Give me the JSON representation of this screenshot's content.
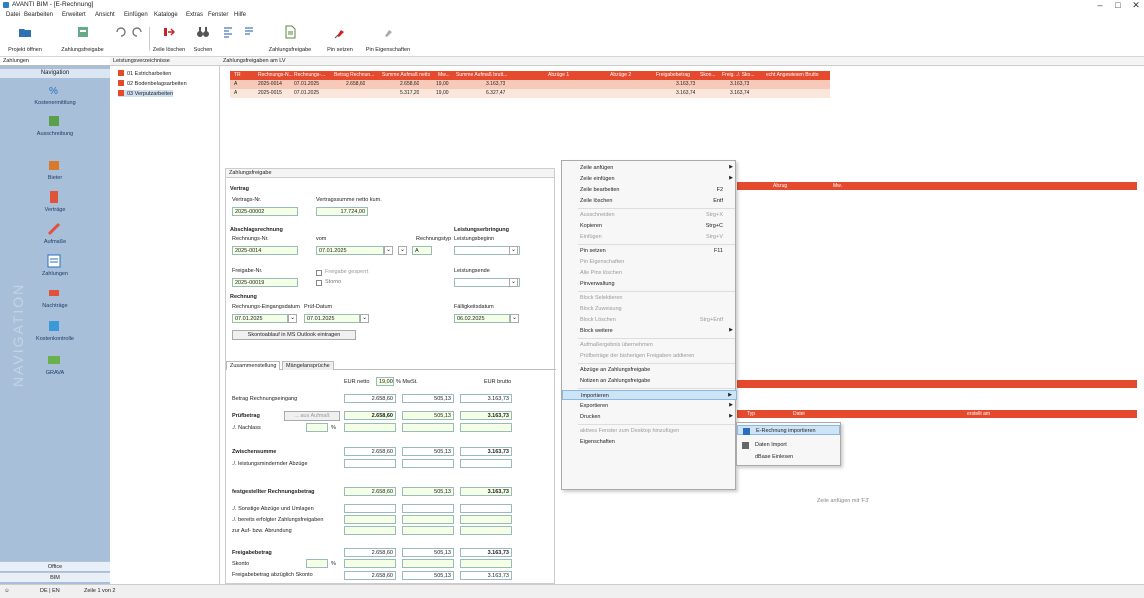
{
  "window": {
    "title": "AVANTI BIM - [E-Rechnung]",
    "minimize": "–",
    "maximize": "□",
    "close": "✕"
  },
  "menu": [
    "Datei",
    "Bearbeiten",
    "Erweitert",
    "Ansicht",
    "Einfügen",
    "Kataloge",
    "Extras",
    "Fenster",
    "Hilfe"
  ],
  "toolbar": {
    "project_open": "Projekt öffnen",
    "payment_release": "Zahlungsfreigabe",
    "delete_row": "Zeile löschen",
    "search": "Suchen",
    "payment_release2": "Zahlungsfreigabe",
    "set_pin": "Pin setzen",
    "pin_properties": "Pin Eigenschaften"
  },
  "nav": {
    "panel": "Zahlungen",
    "title": "Navigation",
    "items": [
      "Kostenermittlung",
      "Ausschreibung",
      "Bieter",
      "Verträge",
      "Aufmaße",
      "Zahlungen",
      "Nachträge",
      "Kostenkontrolle",
      "GRAVA"
    ],
    "vertical": "NAVIGATION",
    "office": "Office",
    "bim": "BIM"
  },
  "tree": {
    "panel": "Leistungsverzeichnisse",
    "items": [
      "01 Estricharbeiten",
      "02 Bodenbelagsarbeiten",
      "03 Verputzarbeiten"
    ]
  },
  "grid": {
    "panel": "Zahlungsfreigaben am LV",
    "headers": [
      "TR",
      "Rechnungs-N...",
      "Rechnungs-...",
      "Betrag Rechnun...",
      "Summe Aufmaß netto",
      "Mw...",
      "Summe Aufmaß brutt...",
      "Abzüge 1",
      "Abzüge 2",
      "Freigabebetrag",
      "Skon...",
      "Freig. ./. Sko...",
      "echt Angewiesen Brutto"
    ],
    "rows": [
      [
        "A",
        "2025-0014",
        "07.01.2025",
        "2.658,60",
        "2.658,60",
        "19,00",
        "3.163,73",
        "",
        "",
        "3.163,73",
        "",
        "3.163,73",
        ""
      ],
      [
        "A",
        "2025-0015",
        "07.01.2025",
        "",
        "5.317,20",
        "19,00",
        "6.327,47",
        "",
        "",
        "3.163,74",
        "",
        "3.163,74",
        ""
      ]
    ]
  },
  "form": {
    "panel": "Zahlungsfreigabe",
    "vertrag": "Vertrag",
    "vertrag_nr_label": "Vertrags-Nr.",
    "vertrag_nr": "2025-00002",
    "vertragssumme_label": "Vertragssumme netto kum.",
    "vertragssumme": "17.724,00",
    "abschlag": "Abschlagsrechnung",
    "rechnungs_nr_label": "Rechnungs-Nr.",
    "rechnungs_nr": "2025-0014",
    "vom_label": "vom",
    "vom": "07.01.2025",
    "typ_label": "Rechnungstyp",
    "typ": "A",
    "leistung": "Leistungserbringung",
    "beginn_label": "Leistungsbeginn",
    "freigabe_nr_label": "Freigabe-Nr.",
    "freigabe_nr": "2025-00019",
    "gesperrt": "Freigabe gesperrt",
    "storno": "Storno",
    "ende_label": "Leistungsende",
    "rechnung": "Rechnung",
    "eingang_label": "Rechnungs-Eingangsdatum",
    "eingang": "07.01.2025",
    "pruef_label": "Prüf-Datum",
    "pruef": "07.01.2025",
    "faellig_label": "Fälligkeitsdatum",
    "faellig": "06.02.2025",
    "skonto_btn": "Skontoablauf in MS Outlook eintragen",
    "tab1": "Zusammenstellung",
    "tab2": "Mängelansprüche",
    "col_netto": "EUR netto",
    "mwst": "19,00",
    "col_mwst": "% MwSt.",
    "col_brutto": "EUR brutto",
    "betrag_eingang": "Betrag Rechnungseingang",
    "r1": [
      "2.658,60",
      "505,13",
      "3.163,73"
    ],
    "pruefbetrag": "Prüfbetrag",
    "aus_aufmass": "... aus Aufmaß",
    "r2": [
      "2.658,60",
      "505,13",
      "3.163,73"
    ],
    "nachlass": "./. Nachlass",
    "pct": "%",
    "zwischensumme": "Zwischensumme",
    "r3": [
      "2.658,60",
      "505,13",
      "3.163,73"
    ],
    "leistungsmindernd": "./. leistungsmindernder Abzüge",
    "festgestellt": "festgestellter Rechnungsbetrag",
    "r4": [
      "2.658,60",
      "505,13",
      "3.163,73"
    ],
    "sonstige": "./. Sonstige Abzüge und Umlagen",
    "bereits": "./. bereits erfolgter Zahlungsfreigaben",
    "rundung": "zur Auf- bzw. Abrundung",
    "freigabebetrag": "Freigabebetrag",
    "r5": [
      "2.658,60",
      "505,13",
      "3.163,73"
    ],
    "skonto": "Skonto",
    "abzueglich": "Freigabebetrag abzüglich Skonto",
    "r6": [
      "2.658,60",
      "505,13",
      "3.163,73"
    ]
  },
  "context": {
    "items": [
      {
        "label": "Zeile anfügen",
        "sc": "",
        "arrow": true,
        "dis": false
      },
      {
        "label": "Zeile einfügen",
        "sc": "",
        "arrow": true,
        "dis": false
      },
      {
        "label": "Zeile bearbeiten",
        "sc": "F2",
        "arrow": false,
        "dis": false
      },
      {
        "label": "Zeile löschen",
        "sc": "Entf",
        "arrow": false,
        "dis": false
      },
      {
        "label": "Ausschneiden",
        "sc": "Strg+X",
        "arrow": false,
        "dis": true
      },
      {
        "label": "Kopieren",
        "sc": "Strg+C",
        "arrow": false,
        "dis": false
      },
      {
        "label": "Einfügen",
        "sc": "Strg+V",
        "arrow": false,
        "dis": true
      },
      {
        "label": "Pin setzen",
        "sc": "F11",
        "arrow": false,
        "dis": false
      },
      {
        "label": "Pin Eigenschaften",
        "sc": "",
        "arrow": false,
        "dis": true
      },
      {
        "label": "Alle Pins löschen",
        "sc": "",
        "arrow": false,
        "dis": true
      },
      {
        "label": "Pinverwaltung",
        "sc": "",
        "arrow": false,
        "dis": false
      },
      {
        "label": "Block Selektieren",
        "sc": "",
        "arrow": false,
        "dis": true
      },
      {
        "label": "Block Zuweisung",
        "sc": "",
        "arrow": false,
        "dis": true
      },
      {
        "label": "Block Löschen",
        "sc": "Strg+Entf",
        "arrow": false,
        "dis": true
      },
      {
        "label": "Block weitere",
        "sc": "",
        "arrow": true,
        "dis": false
      },
      {
        "label": "Aufmaßergebnis übernehmen",
        "sc": "",
        "arrow": false,
        "dis": true
      },
      {
        "label": "Prüfbeträge der bisherigen Freigaben addieren",
        "sc": "",
        "arrow": false,
        "dis": true
      },
      {
        "label": "Abzüge an Zahlungsfreigabe",
        "sc": "",
        "arrow": false,
        "dis": false
      },
      {
        "label": "Notizen an Zahlungsfreigabe",
        "sc": "",
        "arrow": false,
        "dis": false
      },
      {
        "label": "Importieren",
        "sc": "",
        "arrow": true,
        "dis": false
      },
      {
        "label": "Exportieren",
        "sc": "",
        "arrow": true,
        "dis": false
      },
      {
        "label": "Drucken",
        "sc": "",
        "arrow": true,
        "dis": false
      },
      {
        "label": "aktives Fenster zum Desktop hinzufügen",
        "sc": "",
        "arrow": false,
        "dis": true
      },
      {
        "label": "Eigenschaften",
        "sc": "",
        "arrow": false,
        "dis": false
      }
    ]
  },
  "submenu": [
    "E-Rechnung importieren",
    "Daten Import",
    "dBase Einlesen"
  ],
  "right": {
    "abzug_h": [
      "Abzug",
      "Mw."
    ],
    "notes_h": [
      "Typ",
      "Datei",
      "erstellt am"
    ],
    "empty": "Zeile anfügen mit 'F3'"
  },
  "status": {
    "lang": "DE | EN",
    "row": "Zeile 1 von 2"
  }
}
